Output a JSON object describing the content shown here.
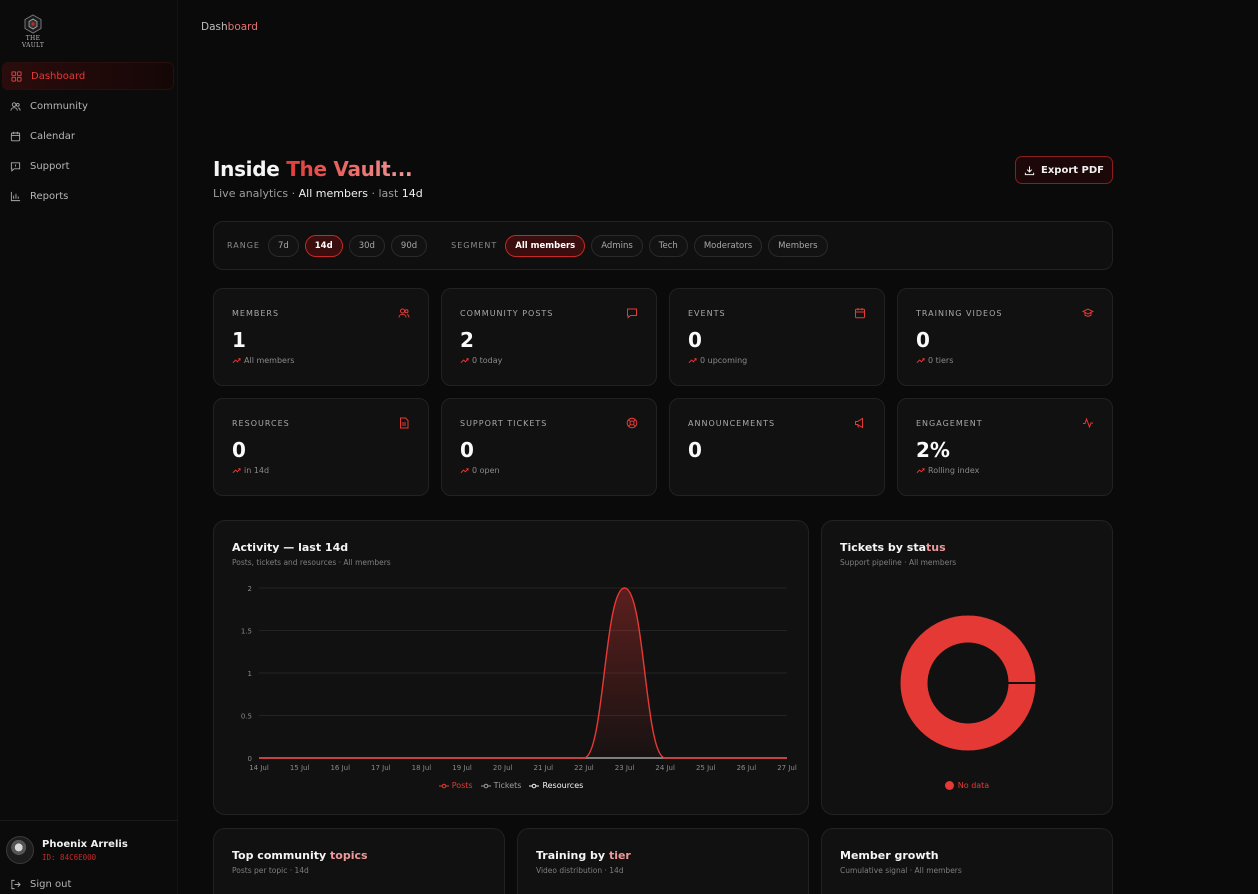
{
  "brand": {
    "wordmark": "THE VAULT",
    "accent": "#e53935"
  },
  "sidebar": {
    "items": [
      {
        "label": "Dashboard",
        "icon": "grid-icon",
        "active": true
      },
      {
        "label": "Community",
        "icon": "users-icon"
      },
      {
        "label": "Calendar",
        "icon": "calendar-icon"
      },
      {
        "label": "Support",
        "icon": "message-icon"
      },
      {
        "label": "Reports",
        "icon": "bar-chart-icon"
      }
    ]
  },
  "user": {
    "name": "Phoenix Arrelis",
    "id": "ID: 84C6E000",
    "signout": "Sign out"
  },
  "breadcrumb": {
    "prefix": "Dash",
    "suffix": "board"
  },
  "header": {
    "title_prefix": "Inside ",
    "title_highlight": "The Vault...",
    "subtitle_a": "Live analytics · ",
    "subtitle_b": "All members",
    "subtitle_c": " · last ",
    "subtitle_d": "14d",
    "export_label": "Export PDF"
  },
  "filters": {
    "range_label": "RANGE",
    "range": [
      "7d",
      "14d",
      "30d",
      "90d"
    ],
    "range_selected": "14d",
    "segment_label": "SEGMENT",
    "segment": [
      "All members",
      "Admins",
      "Tech",
      "Moderators",
      "Members"
    ],
    "segment_selected": "All members"
  },
  "stats": [
    {
      "label": "MEMBERS",
      "value": "1",
      "sub": "All members",
      "icon": "users-icon"
    },
    {
      "label": "COMMUNITY POSTS",
      "value": "2",
      "sub": "0 today",
      "icon": "message-icon"
    },
    {
      "label": "EVENTS",
      "value": "0",
      "sub": "0 upcoming",
      "icon": "calendar-icon"
    },
    {
      "label": "TRAINING VIDEOS",
      "value": "0",
      "sub": "0 tiers",
      "icon": "graduation-cap-icon"
    },
    {
      "label": "RESOURCES",
      "value": "0",
      "sub": "in 14d",
      "icon": "file-icon"
    },
    {
      "label": "SUPPORT TICKETS",
      "value": "0",
      "sub": "0 open",
      "icon": "lifebuoy-icon"
    },
    {
      "label": "ANNOUNCEMENTS",
      "value": "0",
      "sub": "",
      "icon": "megaphone-icon"
    },
    {
      "label": "ENGAGEMENT",
      "value": "2%",
      "sub": "Rolling index",
      "icon": "activity-icon"
    }
  ],
  "activity": {
    "title": "Activity — last 14d",
    "subtitle": "Posts, tickets and resources · All members"
  },
  "tickets": {
    "title_a": "Tickets by sta",
    "title_b": "tus",
    "subtitle": "Support pipeline · All members",
    "legend": "No data"
  },
  "bottom": [
    {
      "title_a": "Top community ",
      "title_b": "topics",
      "subtitle": "Posts per topic · 14d"
    },
    {
      "title_a": "Training by ",
      "title_b": "tier",
      "subtitle": "Video distribution · 14d"
    },
    {
      "title_a": "Member growth",
      "title_b": "",
      "subtitle": "Cumulative signal · All members"
    }
  ],
  "chart_data": [
    {
      "type": "area",
      "title": "Activity — last 14d",
      "x": [
        "14 Jul",
        "15 Jul",
        "16 Jul",
        "17 Jul",
        "18 Jul",
        "19 Jul",
        "20 Jul",
        "21 Jul",
        "22 Jul",
        "23 Jul",
        "24 Jul",
        "25 Jul",
        "26 Jul",
        "27 Jul"
      ],
      "ylim": [
        0,
        2
      ],
      "yticks": [
        "0",
        "0.5",
        "1",
        "1.5",
        "2"
      ],
      "series": [
        {
          "name": "Posts",
          "values": [
            0,
            0,
            0,
            0,
            0,
            0,
            0,
            0,
            0,
            2,
            0,
            0,
            0,
            0
          ],
          "color": "#e53935"
        },
        {
          "name": "Tickets",
          "values": [
            0,
            0,
            0,
            0,
            0,
            0,
            0,
            0,
            0,
            0,
            0,
            0,
            0,
            0
          ],
          "color": "#9e9e9e"
        },
        {
          "name": "Resources",
          "values": [
            0,
            0,
            0,
            0,
            0,
            0,
            0,
            0,
            0,
            0,
            0,
            0,
            0,
            0
          ],
          "color": "#f5f5f5"
        }
      ],
      "grid": true,
      "legend": "bottom"
    },
    {
      "type": "pie",
      "title": "Tickets by status",
      "series": [
        {
          "name": "No data",
          "values": [
            1
          ],
          "color": "#e53935"
        }
      ]
    }
  ]
}
